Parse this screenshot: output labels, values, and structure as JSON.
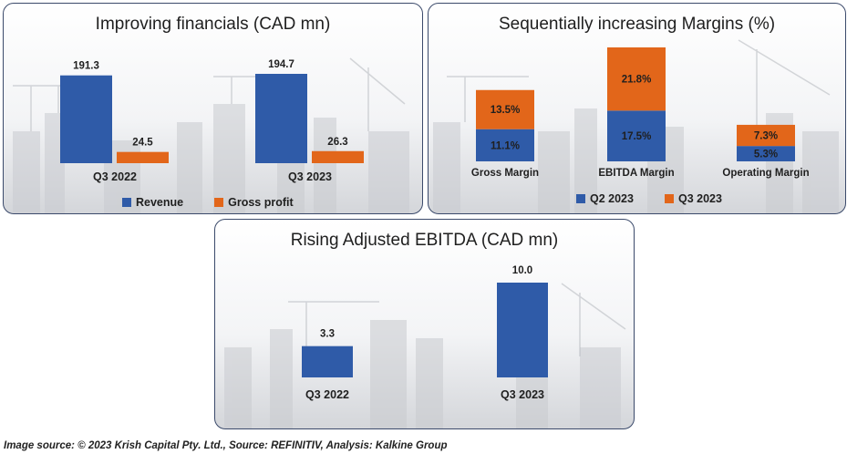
{
  "colors": {
    "revenue": "#2f5ba8",
    "gross_profit": "#e2661a",
    "q2": "#2f5ba8",
    "q3": "#e2661a",
    "panel_border": "#3b4a6b"
  },
  "panels": {
    "financials": {
      "title": "Improving financials (CAD mn)",
      "legend": [
        "Revenue",
        "Gross profit"
      ]
    },
    "margins": {
      "title": "Sequentially increasing Margins (%)",
      "legend": [
        "Q2 2023",
        "Q3 2023"
      ]
    },
    "ebitda": {
      "title": "Rising Adjusted EBITDA (CAD mn)"
    }
  },
  "footer": "Image source: © 2023 Krish Capital Pty. Ltd., Source: REFINITIV, Analysis: Kalkine Group",
  "chart_data": [
    {
      "type": "bar",
      "title": "Improving financials (CAD mn)",
      "categories": [
        "Q3 2022",
        "Q3 2023"
      ],
      "series": [
        {
          "name": "Revenue",
          "values": [
            191.3,
            194.7
          ],
          "labels": [
            "191.3",
            "194.7"
          ]
        },
        {
          "name": "Gross profit",
          "values": [
            24.5,
            26.3
          ],
          "labels": [
            "24.5",
            "26.3"
          ]
        }
      ],
      "legend": "bottom"
    },
    {
      "type": "bar",
      "stacked": true,
      "title": "Sequentially increasing Margins (%)",
      "categories": [
        "Gross Margin",
        "EBITDA Margin",
        "Operating Margin"
      ],
      "series": [
        {
          "name": "Q2 2023",
          "values": [
            11.1,
            17.5,
            5.3
          ],
          "labels": [
            "11.1%",
            "17.5%",
            "5.3%"
          ]
        },
        {
          "name": "Q3 2023",
          "values": [
            13.5,
            21.8,
            7.3
          ],
          "labels": [
            "13.5%",
            "21.8%",
            "7.3%"
          ]
        }
      ],
      "legend": "bottom"
    },
    {
      "type": "bar",
      "title": "Rising Adjusted EBITDA (CAD mn)",
      "categories": [
        "Q3 2022",
        "Q3 2023"
      ],
      "values": [
        3.3,
        10.0
      ],
      "labels": [
        "3.3",
        "10.0"
      ]
    }
  ]
}
